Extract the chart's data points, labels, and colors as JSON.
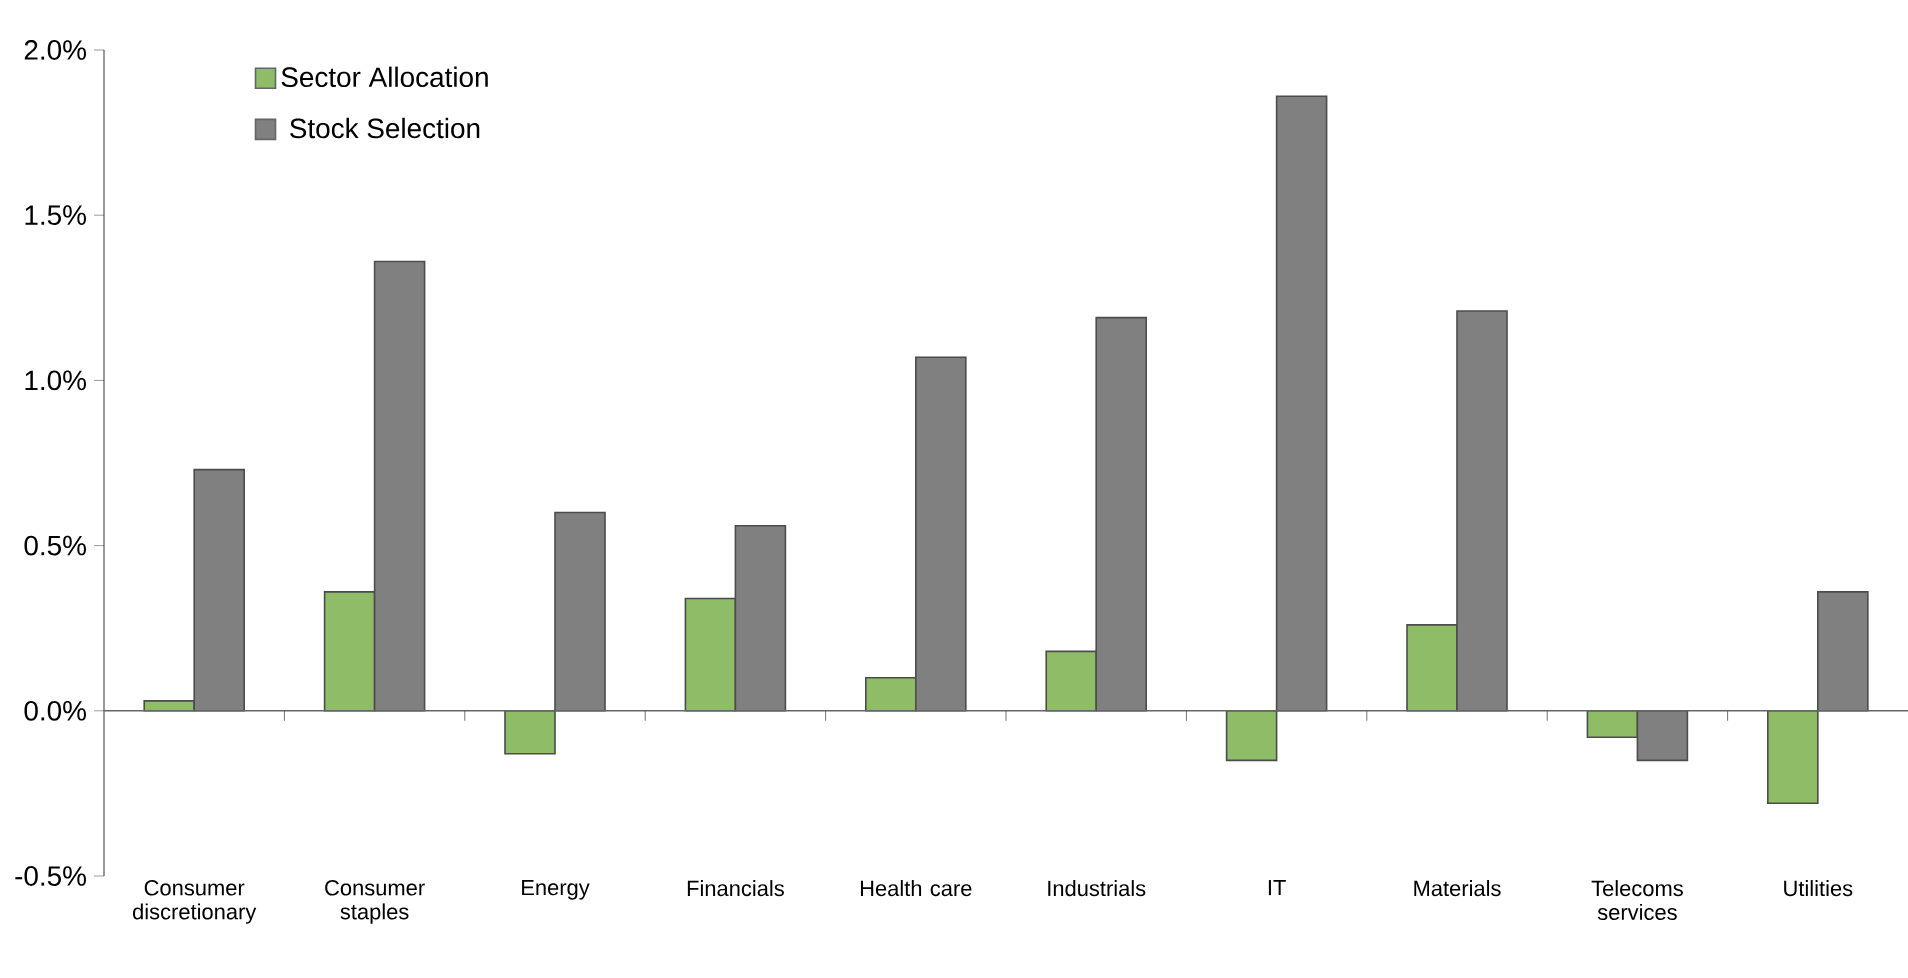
{
  "chart_data": {
    "type": "bar",
    "categories": [
      "Consumer discretionary",
      "Consumer staples",
      "Energy",
      "Financials",
      "Health care",
      "Industrials",
      "IT",
      "Materials",
      "Telecoms services",
      "Utilities"
    ],
    "series": [
      {
        "name": "Sector Allocation",
        "color": "#8fbc66",
        "values": [
          0.03,
          0.36,
          -0.13,
          0.34,
          0.1,
          0.18,
          -0.15,
          0.26,
          -0.08,
          -0.28
        ]
      },
      {
        "name": "Stock Selection",
        "color": "#808080",
        "values": [
          0.73,
          1.36,
          0.6,
          0.56,
          1.07,
          1.19,
          1.86,
          1.21,
          -0.15,
          0.36
        ]
      }
    ],
    "ylim": [
      -0.5,
      2.0
    ],
    "yticks": [
      {
        "value": -0.5,
        "label": "-0.5%"
      },
      {
        "value": 0.0,
        "label": "0.0%"
      },
      {
        "value": 0.5,
        "label": "0.5%"
      },
      {
        "value": 1.0,
        "label": "1.0%"
      },
      {
        "value": 1.5,
        "label": "1.5%"
      },
      {
        "value": 2.0,
        "label": "2.0%"
      }
    ],
    "legend": "top left"
  }
}
